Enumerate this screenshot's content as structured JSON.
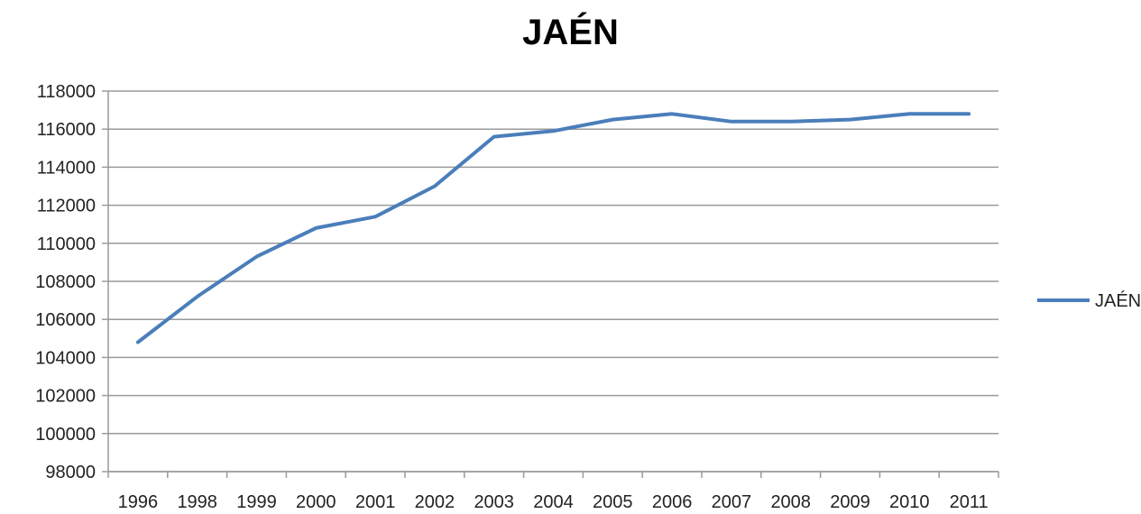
{
  "chart_data": {
    "type": "line",
    "title": "JAÉN",
    "xlabel": "",
    "ylabel": "",
    "categories": [
      "1996",
      "1998",
      "1999",
      "2000",
      "2001",
      "2002",
      "2003",
      "2004",
      "2005",
      "2006",
      "2007",
      "2008",
      "2009",
      "2010",
      "2011"
    ],
    "series": [
      {
        "name": "JAÉN",
        "color": "#4a7ebb",
        "values": [
          104800,
          107200,
          109300,
          110800,
          111400,
          113000,
          115600,
          115900,
          116500,
          116800,
          116400,
          116400,
          116500,
          116800,
          116800
        ]
      }
    ],
    "ylim": [
      98000,
      118000
    ],
    "yticks": [
      98000,
      100000,
      102000,
      104000,
      106000,
      108000,
      110000,
      112000,
      114000,
      116000,
      118000
    ],
    "grid": true,
    "legend_position": "right"
  }
}
